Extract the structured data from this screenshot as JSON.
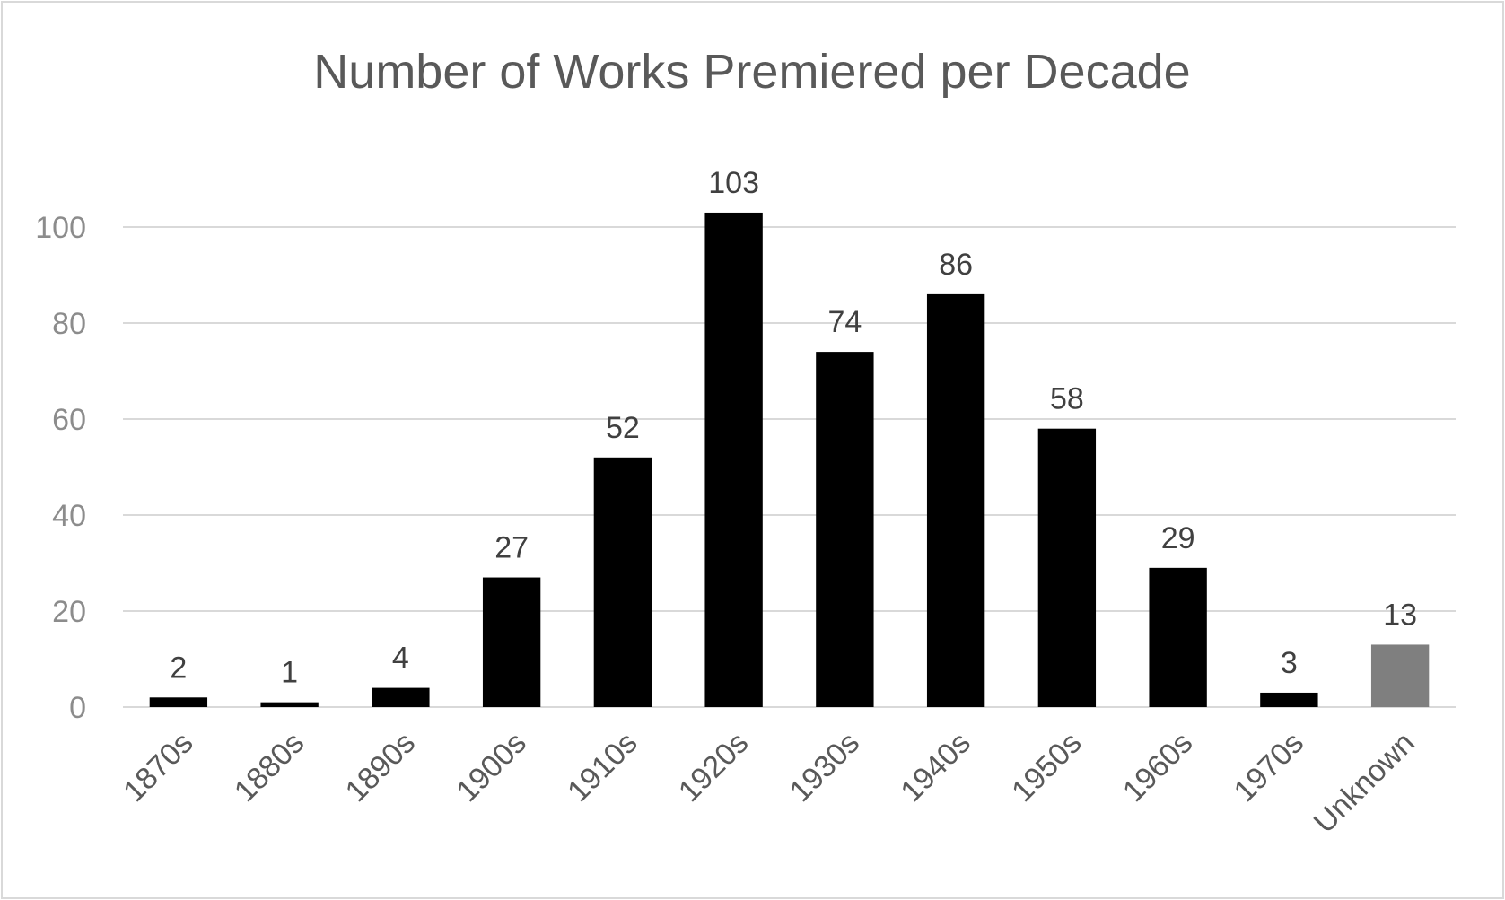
{
  "chart_data": {
    "type": "bar",
    "title": "Number of Works Premiered per Decade",
    "xlabel": "",
    "ylabel": "",
    "categories": [
      "1870s",
      "1880s",
      "1890s",
      "1900s",
      "1910s",
      "1920s",
      "1930s",
      "1940s",
      "1950s",
      "1960s",
      "1970s",
      "Unknown"
    ],
    "values": [
      2,
      1,
      4,
      27,
      52,
      103,
      74,
      86,
      58,
      29,
      3,
      13
    ],
    "ylim": [
      0,
      100
    ],
    "yticks": [
      0,
      20,
      40,
      60,
      80,
      100
    ],
    "grid": true,
    "legend": "none",
    "colors": {
      "bar": "#000000",
      "unknown_bar": "#7f7f7f",
      "gridline": "#d9d9d9",
      "tick_label": "#8c8c8c",
      "category_label": "#595959",
      "data_label": "#404040",
      "title": "#595959",
      "frame": "#d9d9d9"
    }
  }
}
